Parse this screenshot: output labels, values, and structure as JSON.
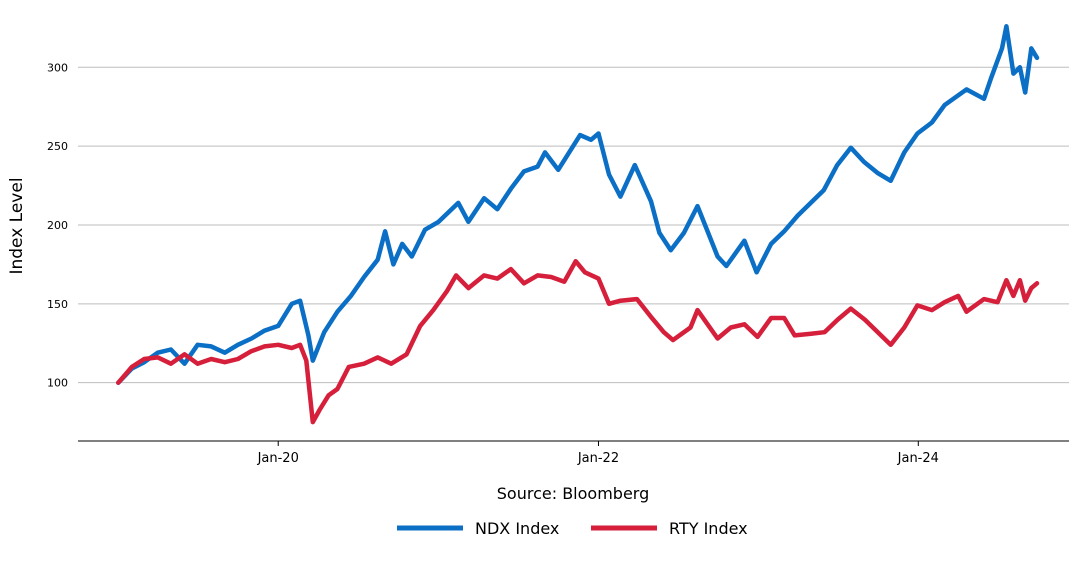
{
  "chart_data": {
    "type": "line",
    "title": "",
    "xlabel": "Source: Bloomberg",
    "ylabel": "Index Level",
    "ylim": [
      63,
      330
    ],
    "yticks": [
      100,
      150,
      200,
      250,
      300
    ],
    "xlim": [
      "2018-10-01",
      "2024-12-10"
    ],
    "xticks": [
      {
        "date": "2020-01-01",
        "label": "Jan-20"
      },
      {
        "date": "2022-01-01",
        "label": "Jan-22"
      },
      {
        "date": "2024-01-01",
        "label": "Jan-24"
      }
    ],
    "grid": "y",
    "legend_position": "bottom-center",
    "series": [
      {
        "name": "NDX Index",
        "color": "#0b6fc6",
        "points": [
          [
            "2019-01-01",
            100
          ],
          [
            "2019-02-01",
            109
          ],
          [
            "2019-03-01",
            113
          ],
          [
            "2019-04-01",
            119
          ],
          [
            "2019-05-01",
            121
          ],
          [
            "2019-06-01",
            112
          ],
          [
            "2019-07-01",
            124
          ],
          [
            "2019-08-01",
            123
          ],
          [
            "2019-09-01",
            119
          ],
          [
            "2019-10-01",
            124
          ],
          [
            "2019-11-01",
            128
          ],
          [
            "2019-12-01",
            133
          ],
          [
            "2020-01-01",
            136
          ],
          [
            "2020-02-01",
            150
          ],
          [
            "2020-02-20",
            152
          ],
          [
            "2020-03-10",
            130
          ],
          [
            "2020-03-20",
            114
          ],
          [
            "2020-04-15",
            132
          ],
          [
            "2020-05-15",
            145
          ],
          [
            "2020-06-15",
            155
          ],
          [
            "2020-07-15",
            167
          ],
          [
            "2020-08-15",
            178
          ],
          [
            "2020-09-01",
            196
          ],
          [
            "2020-09-20",
            175
          ],
          [
            "2020-10-10",
            188
          ],
          [
            "2020-11-01",
            180
          ],
          [
            "2020-12-01",
            197
          ],
          [
            "2021-01-01",
            202
          ],
          [
            "2021-02-15",
            214
          ],
          [
            "2021-03-10",
            202
          ],
          [
            "2021-04-15",
            217
          ],
          [
            "2021-05-15",
            210
          ],
          [
            "2021-06-15",
            223
          ],
          [
            "2021-07-15",
            234
          ],
          [
            "2021-08-15",
            237
          ],
          [
            "2021-09-01",
            246
          ],
          [
            "2021-10-01",
            235
          ],
          [
            "2021-11-20",
            257
          ],
          [
            "2021-12-15",
            254
          ],
          [
            "2022-01-01",
            258
          ],
          [
            "2022-01-25",
            232
          ],
          [
            "2022-02-20",
            218
          ],
          [
            "2022-03-25",
            238
          ],
          [
            "2022-05-01",
            215
          ],
          [
            "2022-05-20",
            195
          ],
          [
            "2022-06-15",
            184
          ],
          [
            "2022-07-15",
            195
          ],
          [
            "2022-08-15",
            212
          ],
          [
            "2022-09-30",
            180
          ],
          [
            "2022-10-20",
            174
          ],
          [
            "2022-11-30",
            190
          ],
          [
            "2022-12-28",
            170
          ],
          [
            "2023-01-30",
            188
          ],
          [
            "2023-03-01",
            196
          ],
          [
            "2023-04-01",
            206
          ],
          [
            "2023-05-30",
            222
          ],
          [
            "2023-06-30",
            238
          ],
          [
            "2023-07-31",
            249
          ],
          [
            "2023-08-30",
            240
          ],
          [
            "2023-09-30",
            233
          ],
          [
            "2023-10-30",
            228
          ],
          [
            "2023-11-30",
            246
          ],
          [
            "2023-12-30",
            258
          ],
          [
            "2024-02-01",
            265
          ],
          [
            "2024-03-01",
            276
          ],
          [
            "2024-04-20",
            286
          ],
          [
            "2024-05-30",
            280
          ],
          [
            "2024-06-15",
            293
          ],
          [
            "2024-07-10",
            312
          ],
          [
            "2024-07-20",
            326
          ],
          [
            "2024-08-05",
            296
          ],
          [
            "2024-08-20",
            300
          ],
          [
            "2024-09-01",
            284
          ],
          [
            "2024-09-15",
            312
          ],
          [
            "2024-09-28",
            306
          ]
        ]
      },
      {
        "name": "RTY Index",
        "color": "#d61f3b",
        "points": [
          [
            "2019-01-01",
            100
          ],
          [
            "2019-02-01",
            110
          ],
          [
            "2019-03-01",
            115
          ],
          [
            "2019-04-01",
            116
          ],
          [
            "2019-05-01",
            112
          ],
          [
            "2019-06-01",
            118
          ],
          [
            "2019-07-01",
            112
          ],
          [
            "2019-08-01",
            115
          ],
          [
            "2019-09-01",
            113
          ],
          [
            "2019-10-01",
            115
          ],
          [
            "2019-11-01",
            120
          ],
          [
            "2019-12-01",
            123
          ],
          [
            "2020-01-01",
            124
          ],
          [
            "2020-02-01",
            122
          ],
          [
            "2020-02-20",
            124
          ],
          [
            "2020-03-05",
            114
          ],
          [
            "2020-03-20",
            75
          ],
          [
            "2020-04-05",
            83
          ],
          [
            "2020-04-25",
            92
          ],
          [
            "2020-05-15",
            96
          ],
          [
            "2020-06-10",
            110
          ],
          [
            "2020-07-15",
            112
          ],
          [
            "2020-08-15",
            116
          ],
          [
            "2020-09-15",
            112
          ],
          [
            "2020-10-20",
            118
          ],
          [
            "2020-11-20",
            136
          ],
          [
            "2020-12-20",
            146
          ],
          [
            "2021-01-20",
            158
          ],
          [
            "2021-02-10",
            168
          ],
          [
            "2021-03-10",
            160
          ],
          [
            "2021-04-15",
            168
          ],
          [
            "2021-05-15",
            166
          ],
          [
            "2021-06-15",
            172
          ],
          [
            "2021-07-15",
            163
          ],
          [
            "2021-08-15",
            168
          ],
          [
            "2021-09-15",
            167
          ],
          [
            "2021-10-15",
            164
          ],
          [
            "2021-11-10",
            177
          ],
          [
            "2021-12-01",
            170
          ],
          [
            "2022-01-01",
            166
          ],
          [
            "2022-01-25",
            150
          ],
          [
            "2022-02-20",
            152
          ],
          [
            "2022-03-30",
            153
          ],
          [
            "2022-04-30",
            142
          ],
          [
            "2022-05-30",
            132
          ],
          [
            "2022-06-20",
            127
          ],
          [
            "2022-07-30",
            135
          ],
          [
            "2022-08-15",
            146
          ],
          [
            "2022-09-30",
            128
          ],
          [
            "2022-10-30",
            135
          ],
          [
            "2022-11-30",
            137
          ],
          [
            "2022-12-30",
            129
          ],
          [
            "2023-01-30",
            141
          ],
          [
            "2023-03-01",
            141
          ],
          [
            "2023-03-25",
            130
          ],
          [
            "2023-05-01",
            131
          ],
          [
            "2023-06-01",
            132
          ],
          [
            "2023-07-01",
            140
          ],
          [
            "2023-07-31",
            147
          ],
          [
            "2023-09-01",
            140
          ],
          [
            "2023-10-30",
            124
          ],
          [
            "2023-11-30",
            135
          ],
          [
            "2023-12-30",
            149
          ],
          [
            "2024-02-01",
            146
          ],
          [
            "2024-03-01",
            151
          ],
          [
            "2024-04-01",
            155
          ],
          [
            "2024-04-20",
            145
          ],
          [
            "2024-05-30",
            153
          ],
          [
            "2024-06-30",
            151
          ],
          [
            "2024-07-20",
            165
          ],
          [
            "2024-08-05",
            155
          ],
          [
            "2024-08-20",
            165
          ],
          [
            "2024-09-01",
            152
          ],
          [
            "2024-09-15",
            160
          ],
          [
            "2024-09-28",
            163
          ]
        ]
      }
    ]
  }
}
